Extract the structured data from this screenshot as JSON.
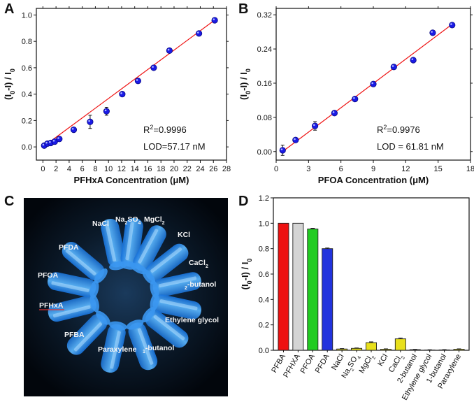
{
  "panels": {
    "A": {
      "letter": "A"
    },
    "B": {
      "letter": "B"
    },
    "C": {
      "letter": "C"
    },
    "D": {
      "letter": "D"
    }
  },
  "chart_data": [
    {
      "id": "A",
      "type": "scatter",
      "title": "",
      "xlabel": "PFHxA Concentration (μM)",
      "ylabel": "(I0-I) / I0",
      "xlim": [
        -1,
        28
      ],
      "ylim": [
        -0.1,
        1.05
      ],
      "xticks": [
        0,
        2,
        4,
        6,
        8,
        10,
        12,
        14,
        16,
        18,
        20,
        22,
        24,
        26,
        28
      ],
      "yticks": [
        0.0,
        0.2,
        0.4,
        0.6,
        0.8,
        1.0
      ],
      "ytick_labels": [
        "0.0",
        "0.2",
        "0.4",
        "0.6",
        "0.8",
        "1.0"
      ],
      "points": [
        {
          "x": 0.2,
          "y": 0.01,
          "err": 0.015
        },
        {
          "x": 0.7,
          "y": 0.025,
          "err": 0.015
        },
        {
          "x": 1.2,
          "y": 0.03,
          "err": 0.015
        },
        {
          "x": 1.8,
          "y": 0.04,
          "err": 0.015
        },
        {
          "x": 2.5,
          "y": 0.06,
          "err": 0.015
        },
        {
          "x": 4.7,
          "y": 0.13,
          "err": 0.015
        },
        {
          "x": 7.2,
          "y": 0.19,
          "err": 0.05
        },
        {
          "x": 9.7,
          "y": 0.27,
          "err": 0.03
        },
        {
          "x": 12.1,
          "y": 0.4,
          "err": 0.015
        },
        {
          "x": 14.5,
          "y": 0.5,
          "err": 0.015
        },
        {
          "x": 16.9,
          "y": 0.6,
          "err": 0.015
        },
        {
          "x": 19.3,
          "y": 0.73,
          "err": 0.015
        },
        {
          "x": 23.8,
          "y": 0.86,
          "err": 0.015
        },
        {
          "x": 26.2,
          "y": 0.96,
          "err": 0.015
        }
      ],
      "fit": {
        "x1": 0,
        "y1": 0.0,
        "x2": 26.3,
        "y2": 0.965
      },
      "annotation": {
        "r2": "R",
        "r2_sup": "2",
        "r2_value": "=0.9996",
        "lod": "LOD=57.17 nM"
      }
    },
    {
      "id": "B",
      "type": "scatter",
      "title": "",
      "xlabel": "PFOA Concentration (μM)",
      "ylabel": "(I0-I) / I0",
      "xlim": [
        0,
        18
      ],
      "ylim": [
        -0.02,
        0.335
      ],
      "xticks": [
        0,
        3,
        6,
        9,
        12,
        15,
        18
      ],
      "yticks": [
        0.0,
        0.08,
        0.16,
        0.24,
        0.32
      ],
      "ytick_labels": [
        "0.00",
        "0.08",
        "0.16",
        "0.24",
        "0.32"
      ],
      "points": [
        {
          "x": 0.6,
          "y": 0.003,
          "err": 0.012
        },
        {
          "x": 1.8,
          "y": 0.027,
          "err": 0.004
        },
        {
          "x": 3.6,
          "y": 0.06,
          "err": 0.01
        },
        {
          "x": 5.4,
          "y": 0.09,
          "err": 0.005
        },
        {
          "x": 7.3,
          "y": 0.123,
          "err": 0.004
        },
        {
          "x": 9.0,
          "y": 0.158,
          "err": 0.004
        },
        {
          "x": 10.9,
          "y": 0.198,
          "err": 0.004
        },
        {
          "x": 12.7,
          "y": 0.214,
          "err": 0.004
        },
        {
          "x": 14.5,
          "y": 0.278,
          "err": 0.004
        },
        {
          "x": 16.3,
          "y": 0.296,
          "err": 0.004
        }
      ],
      "fit": {
        "x1": 0.6,
        "y1": 0.0,
        "x2": 16.3,
        "y2": 0.298
      },
      "annotation": {
        "r2": "R",
        "r2_sup": "2",
        "r2_value": "=0.9976",
        "lod": "LOD = 61.81 nM"
      }
    },
    {
      "id": "D",
      "type": "bar",
      "title": "",
      "xlabel": "",
      "ylabel": "(I0-I) / I0",
      "ylim": [
        0,
        1.2
      ],
      "yticks": [
        0.0,
        0.2,
        0.4,
        0.6,
        0.8,
        1.0,
        1.2
      ],
      "ytick_labels": [
        "0.0",
        "0.2",
        "0.4",
        "0.6",
        "0.8",
        "1.0",
        "1.2"
      ],
      "categories": [
        "PFBA",
        "PFHXA",
        "PFOA",
        "PFDA",
        "NaCl",
        "Na2SO4",
        "MgCl2",
        "KCl",
        "CaCl2",
        "2-butanol",
        "Ethylene glycol",
        "1-butanol",
        "Paraxylene"
      ],
      "values": [
        1.0,
        1.0,
        0.955,
        0.8,
        0.01,
        0.015,
        0.06,
        0.008,
        0.09,
        0.005,
        0.002,
        0.003,
        0.008
      ],
      "errors": [
        0.0,
        0.0,
        0.005,
        0.005,
        0.003,
        0.003,
        0.006,
        0.003,
        0.006,
        0.002,
        0.002,
        0.002,
        0.003
      ],
      "colors": [
        "#ee1111",
        "#d4d4d4",
        "#22cc22",
        "#2233dd",
        "#e8e01c",
        "#e8e01c",
        "#e8e01c",
        "#e8e01c",
        "#e8e01c",
        "#e8e01c",
        "#e8e01c",
        "#e8e01c",
        "#e8e01c"
      ]
    }
  ],
  "photo": {
    "tubes": [
      "NaCl",
      "Na2SO4",
      "MgCl2",
      "KCl",
      "CaCl2",
      "2-butanol",
      "Ethylene glycol",
      "1-butanol",
      "Paraxylene",
      "PFBA",
      "PFHxA",
      "PFOA",
      "PFDA"
    ],
    "glow_color": "#1e90ff"
  }
}
